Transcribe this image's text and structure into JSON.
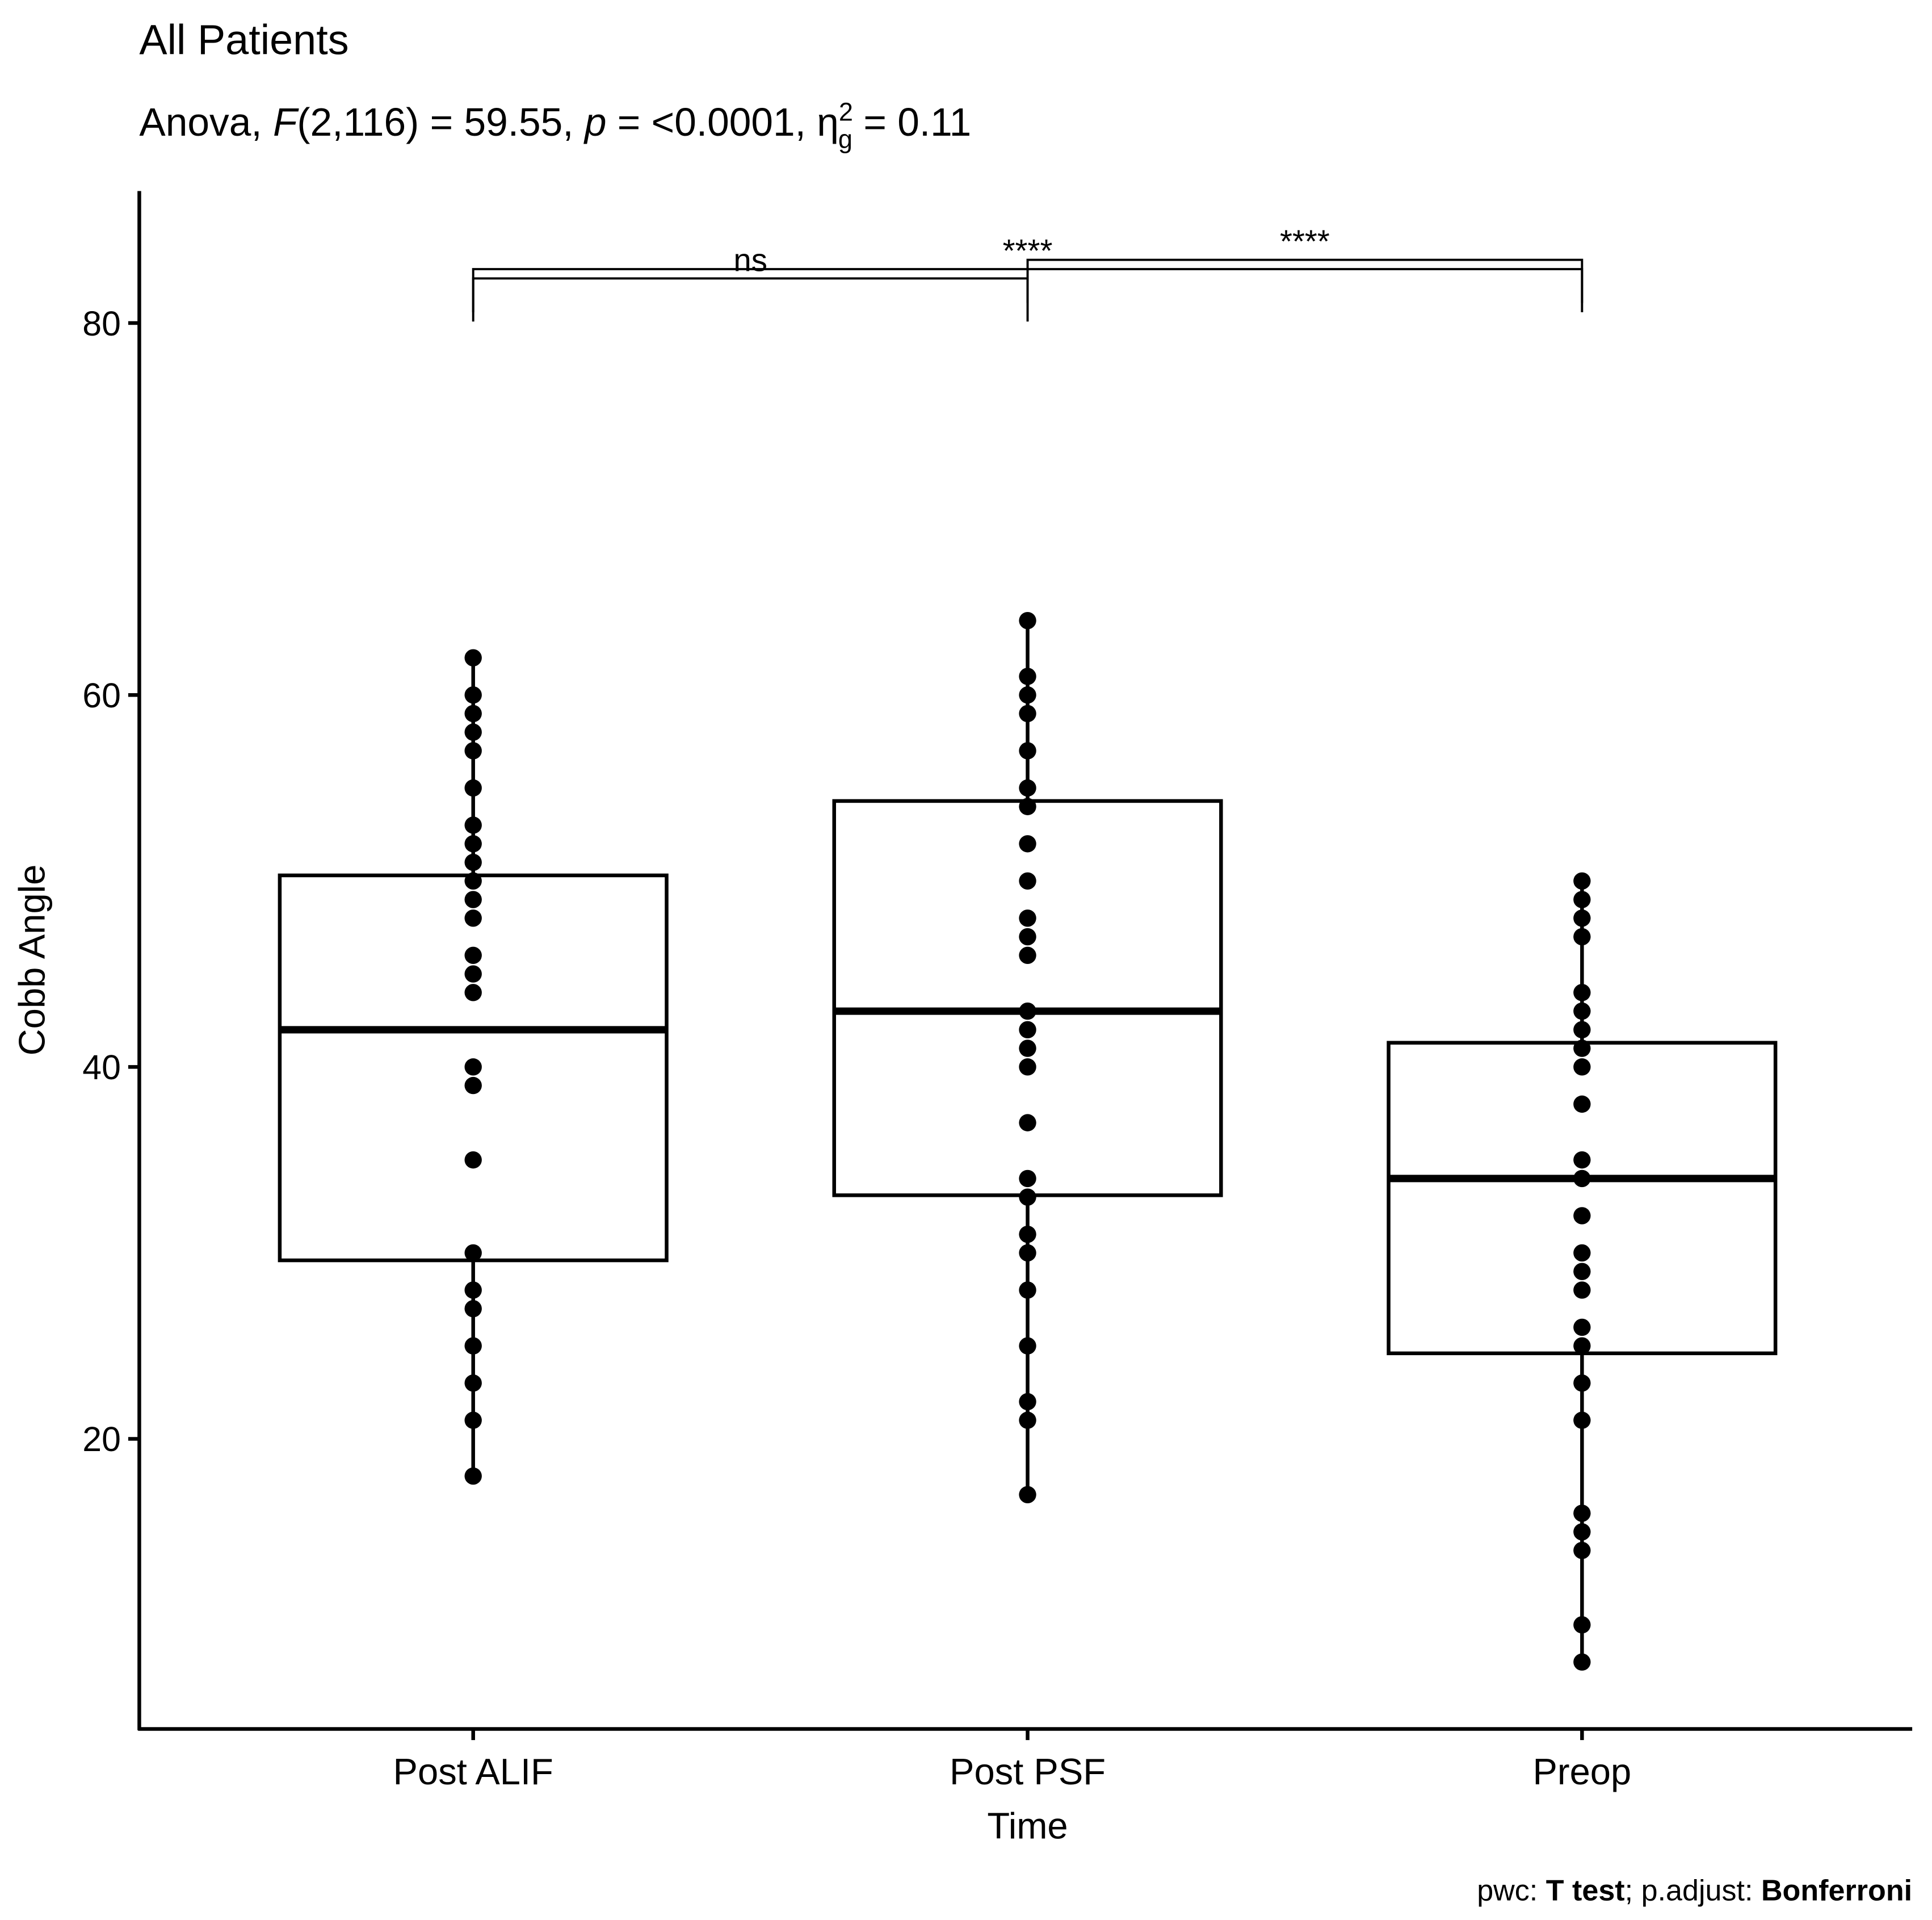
{
  "chart_data": {
    "type": "boxplot",
    "title": "All Patients",
    "subtitle": [
      {
        "text": "Anova, "
      },
      {
        "text": "F",
        "style": "italic"
      },
      {
        "text": "(2,116) = 59.55, "
      },
      {
        "text": "p",
        "style": "italic"
      },
      {
        "text": " = <0.0001, η"
      },
      {
        "text": "2",
        "style": "sup"
      },
      {
        "text": "g",
        "style": "sub"
      },
      {
        "text": " = 0.11"
      }
    ],
    "caption": [
      {
        "text": "pwc: "
      },
      {
        "text": "T test",
        "style": "bold"
      },
      {
        "text": "; p.adjust: "
      },
      {
        "text": "Bonferroni",
        "style": "bold"
      }
    ],
    "x_label": "Time",
    "y_label": "Cobb Angle",
    "categories": [
      "Post ALIF",
      "Post PSF",
      "Preop"
    ],
    "boxes": [
      {
        "min": 18,
        "q1": 29.6,
        "median": 42,
        "q3": 50.3,
        "max": 62
      },
      {
        "min": 17,
        "q1": 33.1,
        "median": 43,
        "q3": 54.3,
        "max": 64
      },
      {
        "min": 8,
        "q1": 24.6,
        "median": 34,
        "q3": 41.3,
        "max": 50
      }
    ],
    "points": [
      [
        62,
        60,
        59,
        58,
        57,
        55,
        53,
        52,
        51,
        50,
        49,
        48,
        46,
        45,
        44,
        40,
        39,
        35,
        30,
        28,
        27,
        25,
        23,
        21,
        18
      ],
      [
        64,
        61,
        60,
        59,
        57,
        55,
        54,
        52,
        50,
        48,
        47,
        46,
        43,
        42,
        41,
        40,
        37,
        34,
        33,
        31,
        30,
        28,
        25,
        22,
        21,
        17
      ],
      [
        50,
        49,
        48,
        47,
        44,
        43,
        42,
        41,
        40,
        38,
        35,
        34,
        32,
        30,
        29,
        28,
        26,
        25,
        23,
        21,
        16,
        15,
        14,
        10,
        8
      ]
    ],
    "brackets": [
      {
        "from": "Post ALIF",
        "to": "Post PSF",
        "label": "ns",
        "y": 82.4
      },
      {
        "from": "Post ALIF",
        "to": "Preop",
        "label": "****",
        "y": 82.9
      },
      {
        "from": "Post PSF",
        "to": "Preop",
        "label": "****",
        "y": 83.4
      }
    ],
    "color": "#000000",
    "ylim": [
      4.4,
      87.1
    ],
    "yticks": [
      20,
      40,
      60,
      80
    ],
    "grid": false
  }
}
